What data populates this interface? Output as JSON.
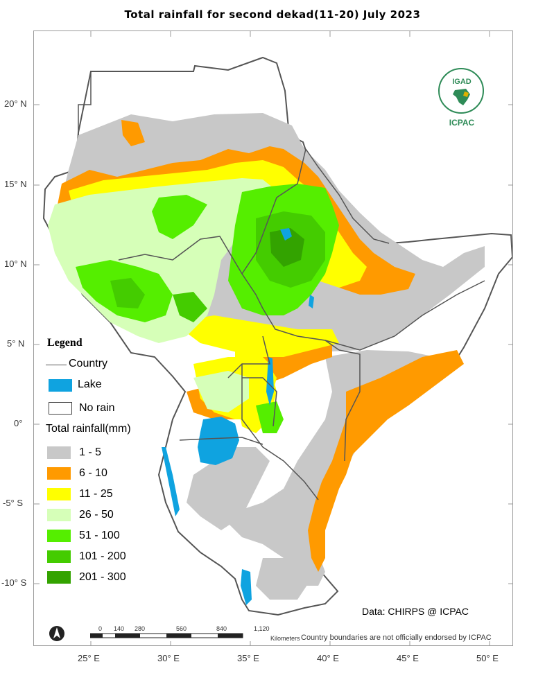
{
  "title": "Total rainfall  for  second dekad(11-20)  July  2023",
  "colors": {
    "country": "#555555",
    "lake": "#0fa3e0",
    "no_rain": "#ffffff",
    "class_1_5": "#c8c8c8",
    "class_6_10": "#ff9a00",
    "class_11_25": "#ffff00",
    "class_26_50": "#d6ffb8",
    "class_51_100": "#55ee00",
    "class_101_200": "#44cc00",
    "class_201_300": "#33a300"
  },
  "axes": {
    "lat_labels": [
      "20° N",
      "15° N",
      "10° N",
      "5° N",
      "0°",
      "-5° S",
      "-10° S"
    ],
    "lon_labels": [
      "25° E",
      "30° E",
      "35° E",
      "40° E",
      "45° E",
      "50° E"
    ]
  },
  "legend": {
    "title": "Legend",
    "country": "Country",
    "lake": "Lake",
    "no_rain": "No rain",
    "rainfall_title": "Total rainfall(mm)",
    "classes": [
      "1 - 5",
      "6 - 10",
      "11 - 25",
      "26 - 50",
      "51 - 100",
      "101 - 200",
      "201 - 300"
    ]
  },
  "logo": {
    "top": "IGAD",
    "bottom": "ICPAC"
  },
  "credit": "Data: CHIRPS @ ICPAC",
  "scale": {
    "ticks": [
      "0",
      "140",
      "280",
      "560",
      "840",
      "1,120"
    ],
    "unit": "Kilometers"
  },
  "disclaimer": "Country boundaries are not officially endorsed by ICPAC"
}
